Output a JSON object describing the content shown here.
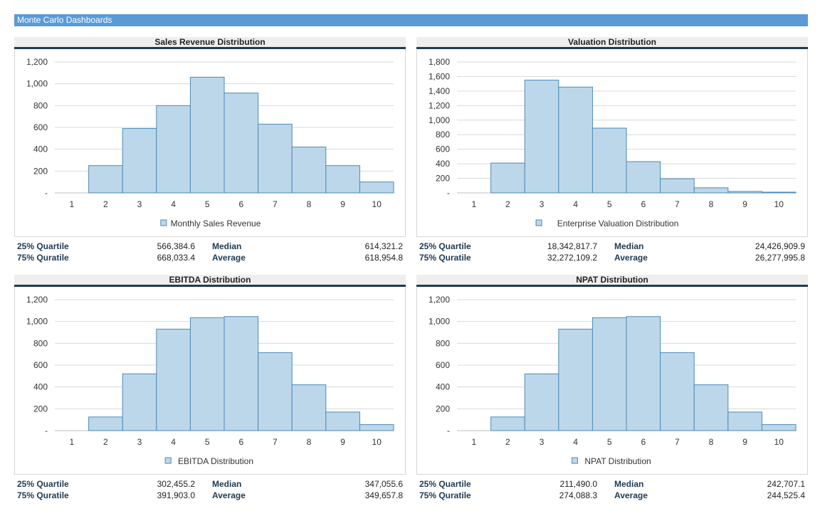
{
  "header": {
    "title": "Monte Carlo Dashboards"
  },
  "colors": {
    "bar_fill": "#bdd7ea",
    "bar_stroke": "#4a8ab8",
    "grid": "#d9d9d9",
    "rule": "#1f3a52"
  },
  "panels": [
    {
      "title": "Sales Revenue Distribution",
      "chart_data": {
        "type": "bar",
        "categories": [
          "1",
          "2",
          "3",
          "4",
          "5",
          "6",
          "7",
          "8",
          "9",
          "10"
        ],
        "series": [
          {
            "name": "Monthly Sales Revenue",
            "values": [
              0,
              250,
              590,
              800,
              1060,
              915,
              630,
              420,
              250,
              100
            ]
          }
        ],
        "y_ticks": [
          "-",
          "200",
          "400",
          "600",
          "800",
          "1,000",
          "1,200"
        ],
        "ylim": [
          0,
          1200
        ],
        "grid": true,
        "legend": "bottom"
      },
      "stats": {
        "q25_label": "25% Quartile",
        "q25": "566,384.6",
        "q75_label": "75% Quratile",
        "q75": "668,033.4",
        "median_label": "Median",
        "median": "614,321.2",
        "avg_label": "Average",
        "avg": "618,954.8"
      }
    },
    {
      "title": "Valuation Distribution",
      "chart_data": {
        "type": "bar",
        "categories": [
          "1",
          "2",
          "3",
          "4",
          "5",
          "6",
          "7",
          "8",
          "9",
          "10"
        ],
        "series": [
          {
            "name": "Enterprise Valuation Distribution",
            "values": [
              0,
              410,
              1550,
              1455,
              890,
              430,
              195,
              70,
              20,
              10
            ]
          }
        ],
        "y_ticks": [
          "-",
          "200",
          "400",
          "600",
          "800",
          "1,000",
          "1,200",
          "1,400",
          "1,600",
          "1,800"
        ],
        "ylim": [
          0,
          1800
        ],
        "grid": true,
        "legend": "bottom"
      },
      "stats": {
        "q25_label": "25% Quartile",
        "q25": "18,342,817.7",
        "q75_label": "75% Quratile",
        "q75": "32,272,109.2",
        "median_label": "Median",
        "median": "24,426,909.9",
        "avg_label": "Average",
        "avg": "26,277,995.8"
      }
    },
    {
      "title": "EBITDA Distribution",
      "chart_data": {
        "type": "bar",
        "categories": [
          "1",
          "2",
          "3",
          "4",
          "5",
          "6",
          "7",
          "8",
          "9",
          "10"
        ],
        "series": [
          {
            "name": "EBITDA Distribution",
            "values": [
              0,
              125,
              520,
              930,
              1035,
              1045,
              715,
              420,
              170,
              55
            ]
          }
        ],
        "y_ticks": [
          "-",
          "200",
          "400",
          "600",
          "800",
          "1,000",
          "1,200"
        ],
        "ylim": [
          0,
          1200
        ],
        "grid": true,
        "legend": "bottom"
      },
      "stats": {
        "q25_label": "25% Quartile",
        "q25": "302,455.2",
        "q75_label": "75% Quratile",
        "q75": "391,903.0",
        "median_label": "Median",
        "median": "347,055.6",
        "avg_label": "Average",
        "avg": "349,657.8"
      }
    },
    {
      "title": "NPAT Distribution",
      "chart_data": {
        "type": "bar",
        "categories": [
          "1",
          "2",
          "3",
          "4",
          "5",
          "6",
          "7",
          "8",
          "9",
          "10"
        ],
        "series": [
          {
            "name": "NPAT Distribution",
            "values": [
              0,
              125,
              520,
              930,
              1035,
              1045,
              715,
              420,
              170,
              55
            ]
          }
        ],
        "y_ticks": [
          "-",
          "200",
          "400",
          "600",
          "800",
          "1,000",
          "1,200"
        ],
        "ylim": [
          0,
          1200
        ],
        "grid": true,
        "legend": "bottom"
      },
      "stats": {
        "q25_label": "25% Quartile",
        "q25": "211,490.0",
        "q75_label": "75% Quratile",
        "q75": "274,088.3",
        "median_label": "Median",
        "median": "242,707.1",
        "avg_label": "Average",
        "avg": "244,525.4"
      }
    }
  ]
}
